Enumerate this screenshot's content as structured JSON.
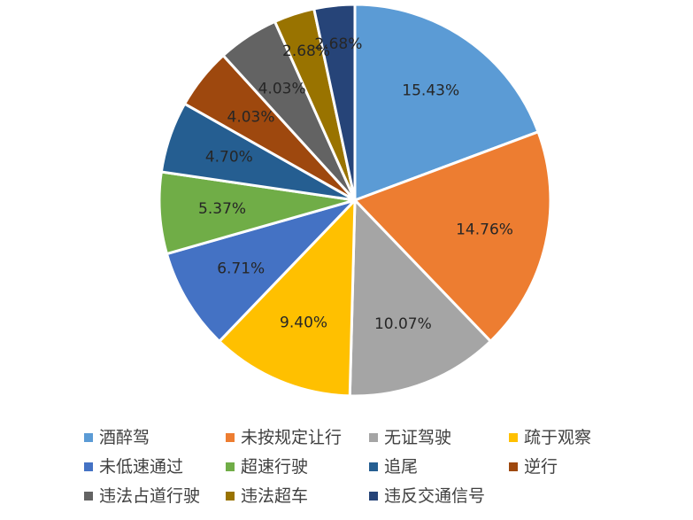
{
  "chart_data": {
    "type": "pie",
    "title": "",
    "legend_position": "bottom",
    "slices": [
      {
        "label": "酒醉驾",
        "value": 15.43,
        "value_label": "15.43%",
        "color": "#5b9bd5"
      },
      {
        "label": "未按规定让行",
        "value": 14.76,
        "value_label": "14.76%",
        "color": "#ed7d31"
      },
      {
        "label": "无证驾驶",
        "value": 10.07,
        "value_label": "10.07%",
        "color": "#a5a5a5"
      },
      {
        "label": "疏于观察",
        "value": 9.4,
        "value_label": "9.40%",
        "color": "#ffc000"
      },
      {
        "label": "未低速通过",
        "value": 6.71,
        "value_label": "6.71%",
        "color": "#4472c4"
      },
      {
        "label": "超速行驶",
        "value": 5.37,
        "value_label": "5.37%",
        "color": "#70ad47"
      },
      {
        "label": "追尾",
        "value": 4.7,
        "value_label": "4.70%",
        "color": "#255e91"
      },
      {
        "label": "逆行",
        "value": 4.03,
        "value_label": "4.03%",
        "color": "#9e480e"
      },
      {
        "label": "违法占道行驶",
        "value": 4.03,
        "value_label": "4.03%",
        "color": "#636363"
      },
      {
        "label": "违法超车",
        "value": 2.68,
        "value_label": "2.68%",
        "color": "#997300"
      },
      {
        "label": "违反交通信号",
        "value": 2.68,
        "value_label": "2.68%",
        "color": "#264478"
      }
    ]
  }
}
